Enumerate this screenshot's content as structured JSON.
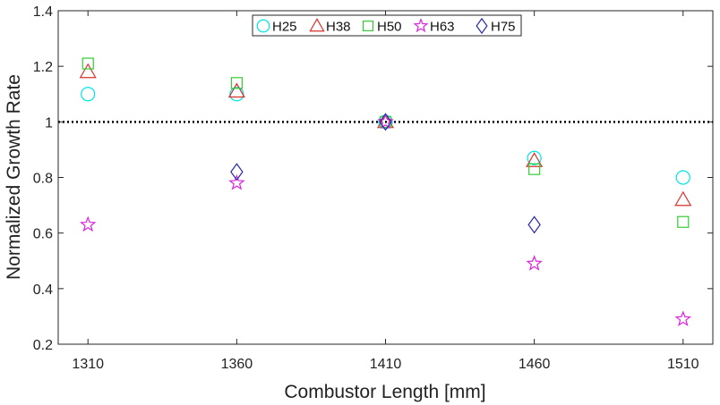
{
  "chart_data": {
    "type": "scatter",
    "title": "",
    "xlabel": "Combustor Length [mm]",
    "ylabel": "Normalized Growth Rate",
    "x": [
      1310,
      1360,
      1410,
      1460,
      1510
    ],
    "x_tick_labels": [
      "1310",
      "1360",
      "1410",
      "1460",
      "1510"
    ],
    "xlim": [
      1300,
      1520
    ],
    "ylim": [
      0.2,
      1.4
    ],
    "y_ticks": [
      0.2,
      0.4,
      0.6,
      0.8,
      1.0,
      1.2,
      1.4
    ],
    "y_tick_labels": [
      "0.2",
      "0.4",
      "0.6",
      "0.8",
      "1",
      "1.2",
      "1.4"
    ],
    "reference_line": {
      "y": 1.0,
      "style": "dotted",
      "color": "#000000"
    },
    "grid": false,
    "legend_position": "top-center",
    "series": [
      {
        "name": "H25",
        "marker": "circle",
        "color": "#00e5e5",
        "values": [
          1.1,
          1.1,
          1.0,
          0.87,
          0.8
        ]
      },
      {
        "name": "H38",
        "marker": "triangle",
        "color": "#d9302a",
        "values": [
          1.18,
          1.11,
          1.0,
          0.86,
          0.72
        ]
      },
      {
        "name": "H50",
        "marker": "square",
        "color": "#33cc33",
        "values": [
          1.21,
          1.14,
          1.0,
          0.83,
          0.64
        ]
      },
      {
        "name": "H63",
        "marker": "star",
        "color": "#dd22dd",
        "values": [
          0.63,
          0.78,
          1.0,
          0.49,
          0.29
        ]
      },
      {
        "name": "H75",
        "marker": "diamond",
        "color": "#2a2aa8",
        "values": [
          null,
          0.82,
          1.0,
          0.63,
          null
        ]
      }
    ]
  }
}
